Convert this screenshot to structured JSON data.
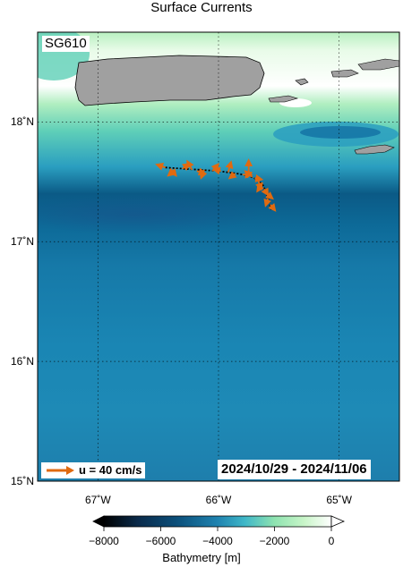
{
  "title": "Surface Currents",
  "platform": "SG610",
  "date_range": "2024/10/29 - 2024/11/06",
  "legend": {
    "label": "u = 40 cm/s",
    "arrow_color": "#e06a10"
  },
  "axes": {
    "lon_ticks": [
      {
        "value": -67,
        "label": "67˚W"
      },
      {
        "value": -66,
        "label": "66˚W"
      },
      {
        "value": -65,
        "label": "65˚W"
      }
    ],
    "lat_ticks": [
      {
        "value": 18,
        "label": "18˚N"
      },
      {
        "value": 17,
        "label": "17˚N"
      },
      {
        "value": 16,
        "label": "16˚N"
      },
      {
        "value": 15,
        "label": "15˚N"
      }
    ],
    "lon_range": [
      -67.5,
      -64.5
    ],
    "lat_range": [
      15.0,
      18.75
    ]
  },
  "colorbar": {
    "title": "Bathymetry [m]",
    "ticks": [
      {
        "value": -8000,
        "label": "−8000"
      },
      {
        "value": -6000,
        "label": "−6000"
      },
      {
        "value": -4000,
        "label": "−4000"
      },
      {
        "value": -2000,
        "label": "−2000"
      },
      {
        "value": 0,
        "label": "0"
      }
    ],
    "range": [
      -8000,
      0
    ],
    "colors": [
      "#000000",
      "#0a2a4a",
      "#0b4f7a",
      "#1f83b0",
      "#3fb7c8",
      "#8ee3b0",
      "#c8f5c8",
      "#ffffff"
    ]
  },
  "colors": {
    "land": "#a0a0a0",
    "track": "#000000",
    "arrow": "#e06a10"
  },
  "track": [
    [
      -66.44,
      17.62
    ],
    [
      -66.3,
      17.61
    ],
    [
      -66.15,
      17.6
    ],
    [
      -66.0,
      17.59
    ],
    [
      -65.85,
      17.57
    ],
    [
      -65.75,
      17.55
    ],
    [
      -65.68,
      17.52
    ],
    [
      -65.63,
      17.47
    ],
    [
      -65.6,
      17.4
    ],
    [
      -65.58,
      17.33
    ],
    [
      -65.56,
      17.26
    ]
  ],
  "currents": [
    [
      -66.44,
      17.62,
      -0.15,
      0.05
    ],
    [
      -66.4,
      17.61,
      0.1,
      -0.12
    ],
    [
      -66.36,
      17.6,
      -0.12,
      -0.1
    ],
    [
      -66.3,
      17.61,
      0.12,
      0.08
    ],
    [
      -66.22,
      17.6,
      -0.08,
      0.15
    ],
    [
      -66.18,
      17.59,
      0.14,
      -0.04
    ],
    [
      -66.12,
      17.6,
      -0.05,
      -0.14
    ],
    [
      -66.05,
      17.59,
      0.1,
      0.12
    ],
    [
      -65.98,
      17.59,
      -0.12,
      0.03
    ],
    [
      -65.92,
      17.58,
      0.05,
      0.18
    ],
    [
      -65.86,
      17.57,
      -0.1,
      -0.08
    ],
    [
      -65.8,
      17.56,
      0.15,
      0.0
    ],
    [
      -65.75,
      17.55,
      0.0,
      0.28
    ],
    [
      -65.72,
      17.54,
      -0.12,
      0.1
    ],
    [
      -65.7,
      17.53,
      0.12,
      -0.02
    ],
    [
      -65.67,
      17.51,
      0.05,
      -0.15
    ],
    [
      -65.64,
      17.48,
      -0.08,
      -0.12
    ],
    [
      -65.62,
      17.44,
      0.06,
      -0.1
    ],
    [
      -65.6,
      17.4,
      0.1,
      -0.08
    ],
    [
      -65.59,
      17.36,
      -0.04,
      -0.12
    ],
    [
      -65.57,
      17.31,
      0.08,
      -0.1
    ]
  ]
}
